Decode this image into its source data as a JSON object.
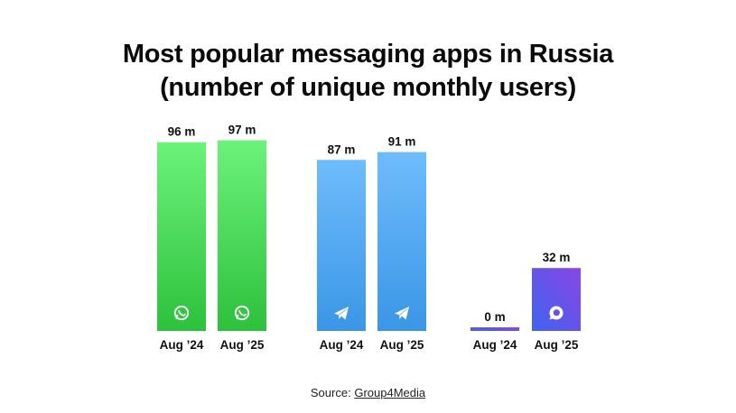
{
  "title_line1": "Most popular messaging apps in Russia",
  "title_line2": "(number of unique monthly users)",
  "source": {
    "label": "Source:",
    "name": "Group4Media"
  },
  "colors": {
    "whatsapp_top": "#6cf27a",
    "whatsapp_bottom": "#2dc13c",
    "telegram_top": "#6ebcfc",
    "telegram_bottom": "#3b96e6",
    "max_top": "#3f63f0",
    "max_bottom": "#8a46e4",
    "label_text": "#111111"
  },
  "chart_data": {
    "type": "bar",
    "unit": "m",
    "groups": [
      {
        "icon": "whatsapp-icon",
        "bars": [
          {
            "category": "Aug ’24",
            "value": 96,
            "label": "96 m",
            "show_icon": true
          },
          {
            "category": "Aug ’25",
            "value": 97,
            "label": "97 m",
            "show_icon": true
          }
        ]
      },
      {
        "icon": "telegram-icon",
        "bars": [
          {
            "category": "Aug ’24",
            "value": 87,
            "label": "87 m",
            "show_icon": true
          },
          {
            "category": "Aug ’25",
            "value": 91,
            "label": "91 m",
            "show_icon": true
          }
        ]
      },
      {
        "icon": "max-messenger-icon",
        "bars": [
          {
            "category": "Aug ’24",
            "value": 0,
            "label": "0 m",
            "show_icon": false
          },
          {
            "category": "Aug ’25",
            "value": 32,
            "label": "32 m",
            "show_icon": true
          }
        ]
      }
    ]
  }
}
